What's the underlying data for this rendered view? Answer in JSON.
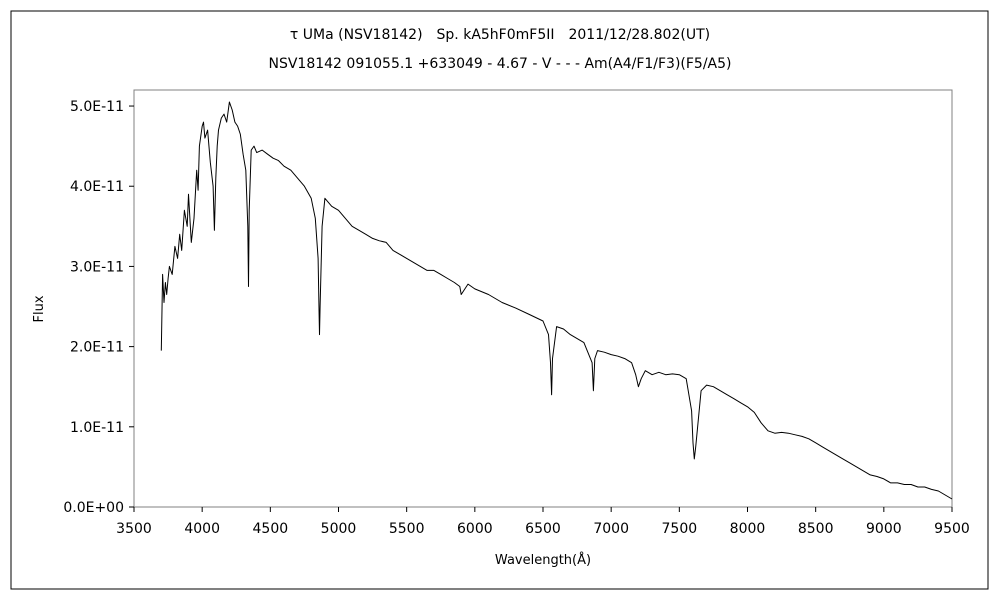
{
  "chart_data": {
    "type": "line",
    "title": "τ UMa (NSV18142)　Sp. kA5hF0mF5II　2011/12/28.802(UT)",
    "subtitle": "NSV18142 091055.1 +633049 - 4.67 - V - - - Am(A4/F1/F3)(F5/A5)",
    "xlabel": "Wavelength(Å)",
    "ylabel": "Flux",
    "xlim": [
      3500,
      9500
    ],
    "ylim": [
      0,
      5.2e-11
    ],
    "grid": false,
    "x_ticks": [
      3500,
      4000,
      4500,
      5000,
      5500,
      6000,
      6500,
      7000,
      7500,
      8000,
      8500,
      9000,
      9500
    ],
    "x_tick_labels": [
      "3500",
      "4000",
      "4500",
      "5000",
      "5500",
      "6000",
      "6500",
      "7000",
      "7500",
      "8000",
      "8500",
      "9000",
      "9500"
    ],
    "y_ticks": [
      0,
      1e-11,
      2e-11,
      3e-11,
      4e-11,
      5e-11
    ],
    "y_tick_labels": [
      "0.0E+00",
      "1.0E-11",
      "2.0E-11",
      "3.0E-11",
      "4.0E-11",
      "5.0E-11"
    ],
    "series": [
      {
        "color": "#000000",
        "x": [
          3700,
          3710,
          3720,
          3730,
          3740,
          3750,
          3760,
          3780,
          3800,
          3820,
          3835,
          3850,
          3870,
          3890,
          3900,
          3920,
          3940,
          3960,
          3970,
          3980,
          4000,
          4010,
          4020,
          4040,
          4060,
          4080,
          4090,
          4100,
          4110,
          4120,
          4140,
          4160,
          4180,
          4200,
          4220,
          4240,
          4260,
          4280,
          4300,
          4320,
          4335,
          4340,
          4345,
          4360,
          4380,
          4400,
          4440,
          4480,
          4520,
          4560,
          4600,
          4650,
          4700,
          4750,
          4800,
          4830,
          4850,
          4858,
          4861,
          4865,
          4880,
          4900,
          4950,
          5000,
          5050,
          5100,
          5150,
          5200,
          5250,
          5300,
          5350,
          5400,
          5450,
          5500,
          5550,
          5600,
          5650,
          5700,
          5750,
          5800,
          5850,
          5890,
          5900,
          5950,
          6000,
          6100,
          6200,
          6300,
          6400,
          6500,
          6540,
          6555,
          6563,
          6570,
          6600,
          6650,
          6700,
          6800,
          6860,
          6870,
          6880,
          6900,
          6950,
          7000,
          7050,
          7100,
          7150,
          7180,
          7200,
          7220,
          7250,
          7300,
          7350,
          7400,
          7450,
          7500,
          7550,
          7590,
          7600,
          7610,
          7620,
          7640,
          7660,
          7700,
          7750,
          7800,
          7850,
          7900,
          7950,
          8000,
          8050,
          8100,
          8150,
          8200,
          8250,
          8300,
          8350,
          8400,
          8450,
          8500,
          8550,
          8600,
          8650,
          8700,
          8750,
          8800,
          8850,
          8900,
          8950,
          9000,
          9050,
          9100,
          9150,
          9200,
          9250,
          9300,
          9350,
          9400,
          9450,
          9500
        ],
        "y": [
          1.95e-11,
          2.9e-11,
          2.55e-11,
          2.8e-11,
          2.65e-11,
          2.85e-11,
          3e-11,
          2.9e-11,
          3.25e-11,
          3.1e-11,
          3.4e-11,
          3.2e-11,
          3.7e-11,
          3.5e-11,
          3.9e-11,
          3.3e-11,
          3.6e-11,
          4.2e-11,
          3.95e-11,
          4.5e-11,
          4.75e-11,
          4.8e-11,
          4.6e-11,
          4.7e-11,
          4.3e-11,
          4e-11,
          3.45e-11,
          4.1e-11,
          4.5e-11,
          4.7e-11,
          4.85e-11,
          4.9e-11,
          4.8e-11,
          5.05e-11,
          4.95e-11,
          4.8e-11,
          4.75e-11,
          4.65e-11,
          4.4e-11,
          4.2e-11,
          3.5e-11,
          2.75e-11,
          3.7e-11,
          4.45e-11,
          4.5e-11,
          4.42e-11,
          4.45e-11,
          4.4e-11,
          4.35e-11,
          4.32e-11,
          4.25e-11,
          4.2e-11,
          4.1e-11,
          4e-11,
          3.85e-11,
          3.6e-11,
          3.1e-11,
          2.4e-11,
          2.15e-11,
          2.5e-11,
          3.5e-11,
          3.85e-11,
          3.75e-11,
          3.7e-11,
          3.6e-11,
          3.5e-11,
          3.45e-11,
          3.4e-11,
          3.35e-11,
          3.32e-11,
          3.3e-11,
          3.2e-11,
          3.15e-11,
          3.1e-11,
          3.05e-11,
          3e-11,
          2.95e-11,
          2.95e-11,
          2.9e-11,
          2.85e-11,
          2.8e-11,
          2.75e-11,
          2.65e-11,
          2.78e-11,
          2.72e-11,
          2.65e-11,
          2.55e-11,
          2.48e-11,
          2.4e-11,
          2.32e-11,
          2.15e-11,
          1.8e-11,
          1.4e-11,
          1.85e-11,
          2.25e-11,
          2.22e-11,
          2.15e-11,
          2.05e-11,
          1.8e-11,
          1.45e-11,
          1.85e-11,
          1.95e-11,
          1.93e-11,
          1.9e-11,
          1.88e-11,
          1.85e-11,
          1.8e-11,
          1.65e-11,
          1.5e-11,
          1.6e-11,
          1.7e-11,
          1.65e-11,
          1.68e-11,
          1.65e-11,
          1.66e-11,
          1.65e-11,
          1.6e-11,
          1.2e-11,
          8e-12,
          6e-12,
          7.5e-12,
          1.1e-11,
          1.45e-11,
          1.52e-11,
          1.5e-11,
          1.45e-11,
          1.4e-11,
          1.35e-11,
          1.3e-11,
          1.25e-11,
          1.18e-11,
          1.05e-11,
          9.5e-12,
          9.2e-12,
          9.3e-12,
          9.2e-12,
          9e-12,
          8.8e-12,
          8.5e-12,
          8e-12,
          7.5e-12,
          7e-12,
          6.5e-12,
          6e-12,
          5.5e-12,
          5e-12,
          4.5e-12,
          4e-12,
          3.8e-12,
          3.5e-12,
          3e-12,
          3e-12,
          2.8e-12,
          2.8e-12,
          2.5e-12,
          2.5e-12,
          2.2e-12,
          2e-12,
          1.5e-12,
          1e-12
        ]
      }
    ]
  }
}
